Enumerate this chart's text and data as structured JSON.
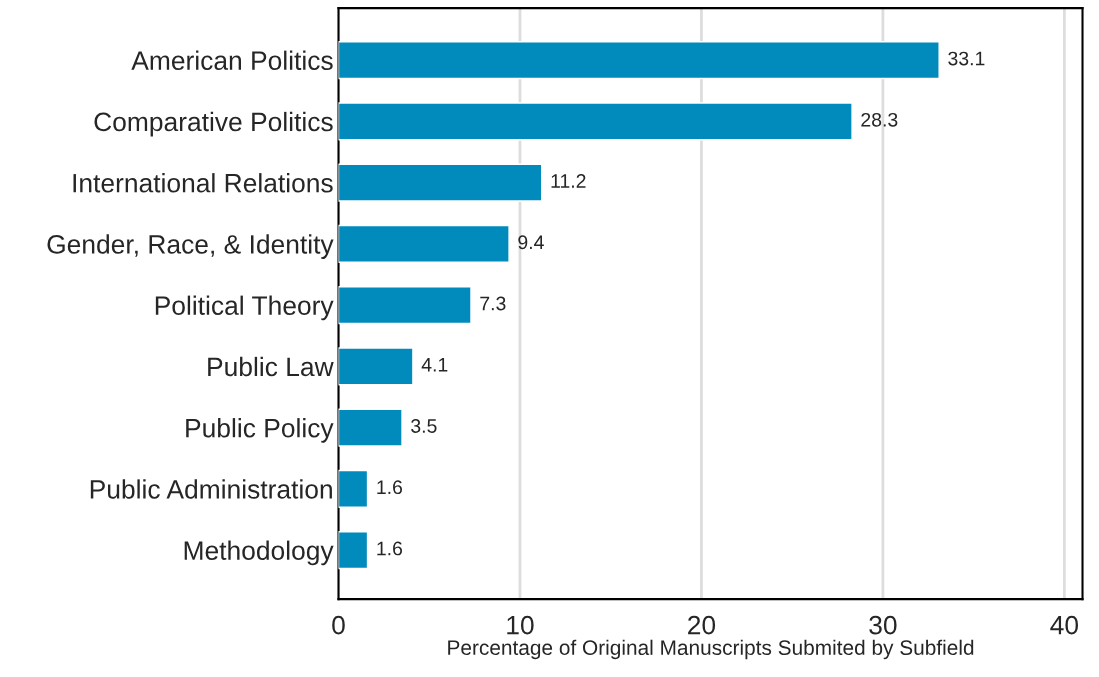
{
  "chart_data": {
    "type": "bar",
    "orientation": "horizontal",
    "xlabel": "Percentage of Original Manuscripts Submited by Subfield",
    "categories": [
      "American Politics",
      "Comparative Politics",
      "International Relations",
      "Gender, Race, & Identity",
      "Political Theory",
      "Public Law",
      "Public Policy",
      "Public Administration",
      "Methodology"
    ],
    "values": [
      33.1,
      28.3,
      11.2,
      9.4,
      7.3,
      4.1,
      3.5,
      1.6,
      1.6
    ],
    "color": "#008bbc",
    "data_labels": true,
    "xlim": [
      0,
      41
    ],
    "xticks": [
      0,
      10,
      20,
      30,
      40
    ],
    "grid": "x",
    "legend": false
  }
}
